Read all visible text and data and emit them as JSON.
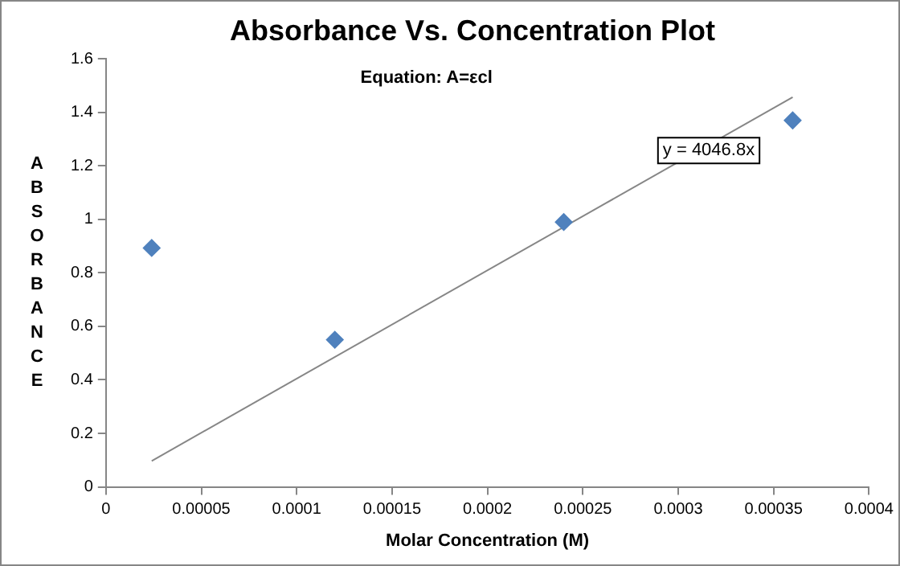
{
  "chart_data": {
    "type": "scatter",
    "title": "Absorbance Vs. Concentration Plot",
    "subtitle": "Equation: A=εcl",
    "xlabel": "Molar Concentration (M)",
    "ylabel": "ABSORBANCE",
    "x": [
      2.4e-05,
      0.00012,
      0.00024,
      0.00036
    ],
    "series": [
      {
        "color": "#4f81bd",
        "values": [
          0.893,
          0.55,
          0.99,
          1.37
        ],
        "marker": "diamond"
      },
      {
        "type": "line",
        "color": "#868686",
        "x": [
          2.4e-05,
          0.00036
        ],
        "values": [
          0.097,
          1.457
        ],
        "marker": "none"
      }
    ],
    "annotations": [
      "y = 4046.8x"
    ],
    "xlim": [
      0,
      0.0004
    ],
    "xticks": [
      0,
      {
        "value": 5e-05,
        "label": "0.00005"
      },
      0.0001,
      0.00015,
      0.0002,
      0.00025,
      0.0003,
      0.00035,
      0.0004
    ],
    "ylim": [
      0,
      1.6
    ],
    "yticks": [
      0,
      0.2,
      0.4,
      0.6,
      0.8,
      1,
      1.2,
      1.4,
      1.6
    ],
    "grid": false,
    "legend": false
  }
}
